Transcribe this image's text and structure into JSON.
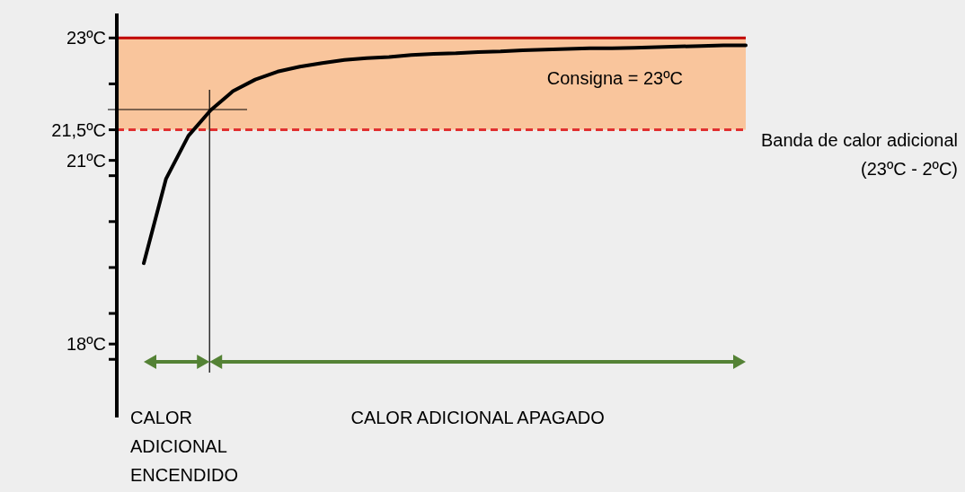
{
  "chart_data": {
    "type": "line",
    "categories": [
      null,
      null,
      null,
      null,
      null,
      null,
      null,
      null,
      null,
      null,
      null,
      null,
      null,
      null,
      null,
      null,
      null,
      null,
      null,
      null,
      null,
      null,
      null,
      null,
      null,
      null,
      null,
      null
    ],
    "series": [
      {
        "color": "#000000",
        "values": [
          19.32,
          20.7,
          21.4,
          21.82,
          22.13,
          22.32,
          22.45,
          22.53,
          22.59,
          22.64,
          22.67,
          22.69,
          22.72,
          22.74,
          22.75,
          22.77,
          22.78,
          22.8,
          22.81,
          22.82,
          22.83,
          22.83,
          22.84,
          22.85,
          22.86,
          22.87,
          22.88,
          22.88
        ]
      }
    ],
    "ylim": [
      16.8,
      23.4
    ],
    "yticks": [
      {
        "value": 23,
        "label": "23ºC"
      },
      {
        "value": 22.25,
        "label": null
      },
      {
        "value": 21.5,
        "label": "21,5ºC"
      },
      {
        "value": 21,
        "label": "21ºC"
      },
      {
        "value": 20.75,
        "label": null
      },
      {
        "value": 20,
        "label": null
      },
      {
        "value": 19.25,
        "label": null
      },
      {
        "value": 18.5,
        "label": null
      },
      {
        "value": 18,
        "label": "18ºC"
      },
      {
        "value": 17.75,
        "label": null
      }
    ],
    "tick_labels": "y",
    "bands": [
      {
        "axis": "y",
        "from": 21.5,
        "to": 23,
        "label": "Banda de calor adicional (23ºC - 2ºC)",
        "color": "#f9c59c"
      }
    ],
    "ref_lines": [
      {
        "axis": "y",
        "value": 23,
        "label": "Consigna = 23ºC",
        "color": "#c00000",
        "line_style": "solid"
      },
      {
        "axis": "y",
        "value": 21.5,
        "color": "#e03030",
        "line_style": "dashed"
      }
    ],
    "annotations": [
      "CALOR ADICIONAL ENCENDIDO",
      "CALOR ADICIONAL APAGADO"
    ]
  }
}
